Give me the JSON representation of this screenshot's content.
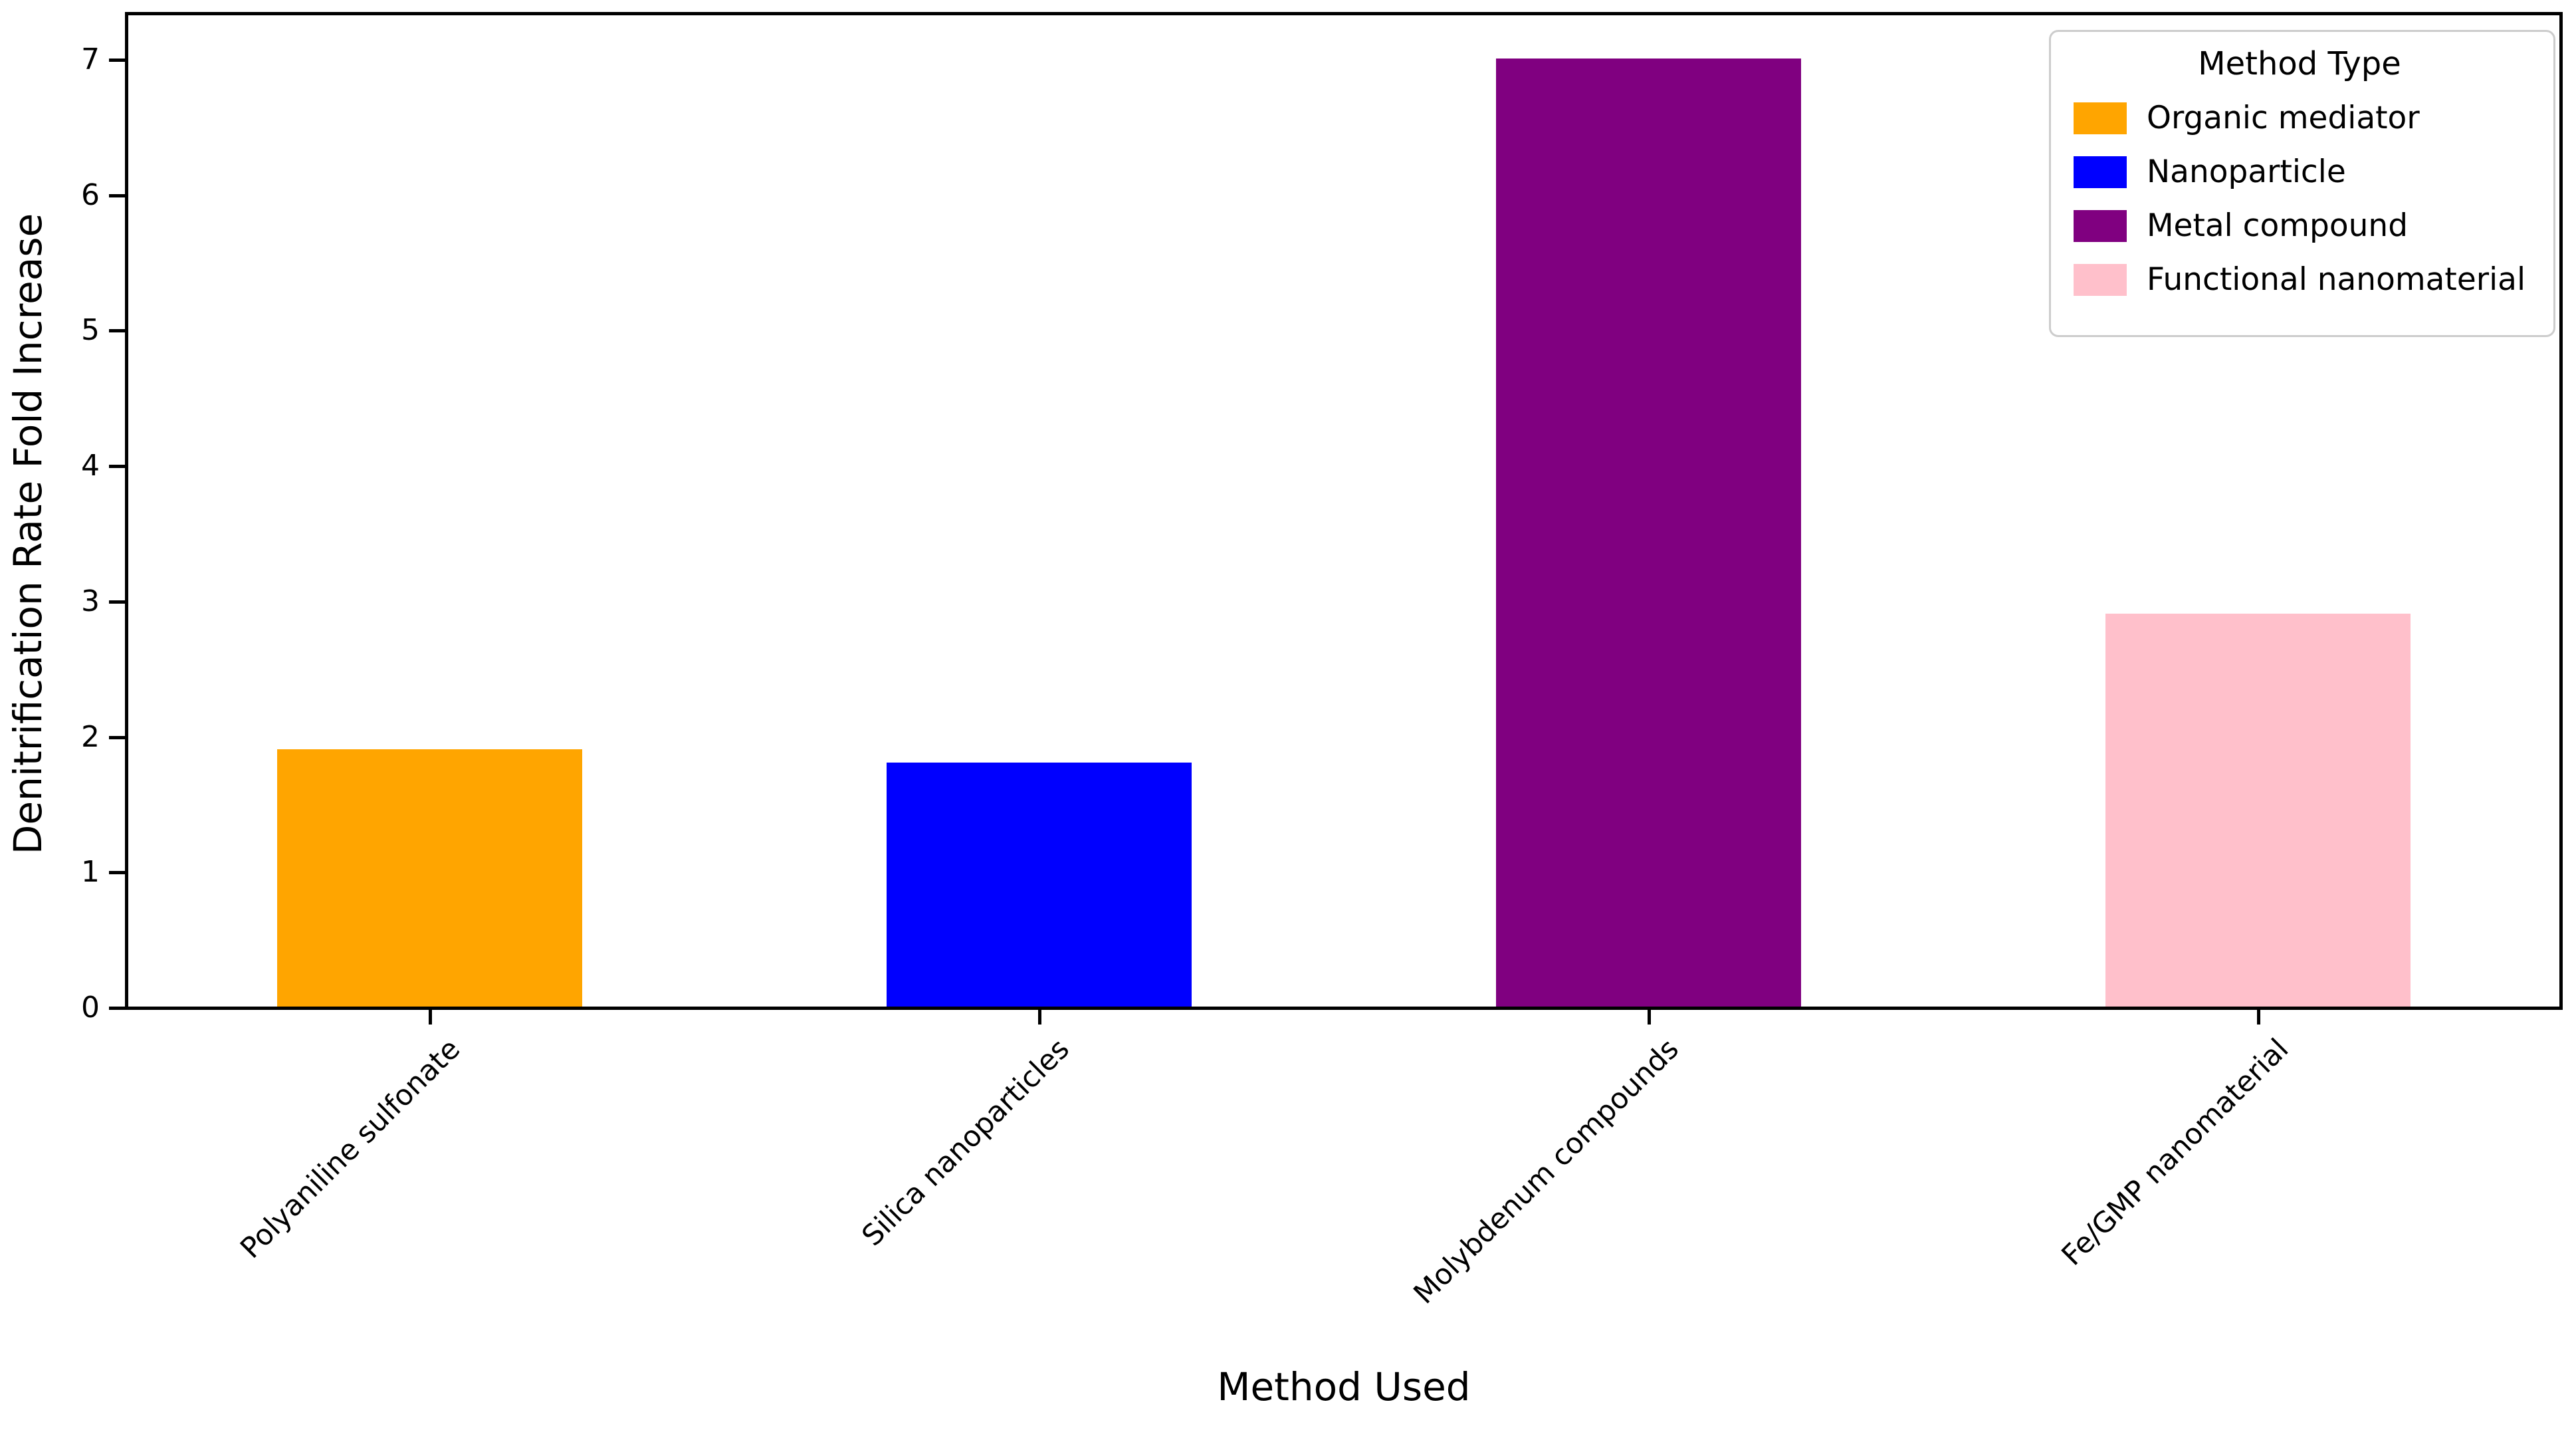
{
  "chart_data": {
    "type": "bar",
    "title": "",
    "categories": [
      "Polyaniline sulfonate",
      "Silica nanoparticles",
      "Molybdenum compounds",
      "Fe/GMP nanomaterial"
    ],
    "values": [
      1.9,
      1.8,
      7.0,
      2.9
    ],
    "bar_colors": [
      "#FFA500",
      "#0000FF",
      "#800080",
      "#FFC0CB"
    ],
    "xlabel": "Method Used",
    "ylabel": "Denitrification Rate Fold Increase",
    "ylim": [
      0,
      7.35
    ],
    "yticks": [
      0,
      1,
      2,
      3,
      4,
      5,
      6,
      7
    ],
    "grid": false,
    "spine_color": "#000000",
    "legend": {
      "title": "Method Type",
      "position": "upper right",
      "border_color": "#cccccc",
      "entries": [
        {
          "label": "Organic mediator",
          "color": "#FFA500"
        },
        {
          "label": "Nanoparticle",
          "color": "#0000FF"
        },
        {
          "label": "Metal compound",
          "color": "#800080"
        },
        {
          "label": "Functional nanomaterial",
          "color": "#FFC0CB"
        }
      ]
    }
  }
}
